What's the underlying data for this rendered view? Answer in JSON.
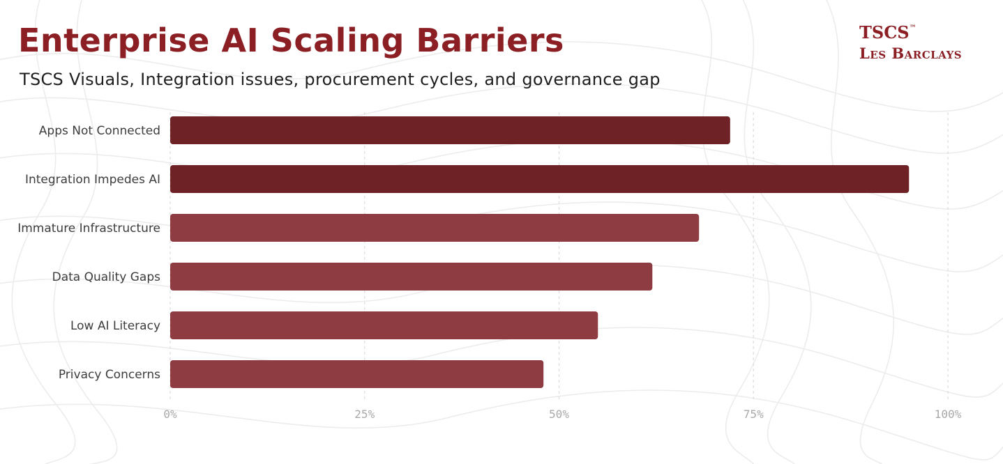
{
  "header": {
    "title": "Enterprise AI Scaling Barriers",
    "subtitle": "TSCS Visuals, Integration issues, procurement cycles, and governance gap"
  },
  "logo": {
    "line1": "TSCS",
    "tm": "™",
    "line2": "Les Barclays"
  },
  "chart_data": {
    "type": "bar",
    "orientation": "horizontal",
    "title": "Enterprise AI Scaling Barriers",
    "subtitle": "TSCS Visuals, Integration issues, procurement cycles, and governance gap",
    "categories": [
      "Apps Not Connected",
      "Integration Impedes AI",
      "Immature Infrastructure",
      "Data Quality Gaps",
      "Low AI Literacy",
      "Privacy Concerns"
    ],
    "values": [
      72,
      95,
      68,
      62,
      55,
      48
    ],
    "unit": "%",
    "xlim": [
      0,
      100
    ],
    "ticks": [
      0,
      25,
      50,
      75,
      100
    ],
    "tick_labels": [
      "0%",
      "25%",
      "50%",
      "75%",
      "100%"
    ],
    "grid": true,
    "bar_colors": [
      "#6e2226",
      "#6e2226",
      "#8e3b42",
      "#8e3b42",
      "#8e3b42",
      "#8e3b42"
    ]
  }
}
